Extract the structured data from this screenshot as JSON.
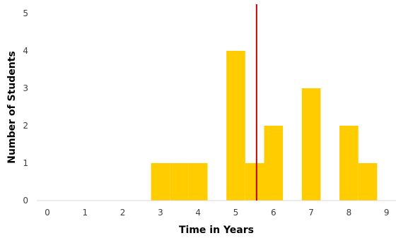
{
  "chart_data": {
    "type": "bar",
    "title": "",
    "xlabel": "Time in Years",
    "ylabel": "Number of Students",
    "xlim": [
      0,
      9
    ],
    "ylim": [
      0,
      5
    ],
    "x_ticks": [
      "0",
      "1",
      "2",
      "3",
      "4",
      "5",
      "6",
      "7",
      "8",
      "9"
    ],
    "y_ticks": [
      "0",
      "1",
      "2",
      "3",
      "4",
      "5"
    ],
    "grid": false,
    "legend": "none",
    "bars": [
      {
        "x_start": 2.75,
        "x_end": 3.25,
        "value": 1
      },
      {
        "x_start": 3.25,
        "x_end": 3.75,
        "value": 1
      },
      {
        "x_start": 3.75,
        "x_end": 4.25,
        "value": 1
      },
      {
        "x_start": 4.75,
        "x_end": 5.25,
        "value": 4
      },
      {
        "x_start": 5.25,
        "x_end": 5.75,
        "value": 1
      },
      {
        "x_start": 5.75,
        "x_end": 6.25,
        "value": 2
      },
      {
        "x_start": 6.75,
        "x_end": 7.25,
        "value": 3
      },
      {
        "x_start": 7.75,
        "x_end": 8.25,
        "value": 2
      },
      {
        "x_start": 8.25,
        "x_end": 8.75,
        "value": 1
      }
    ],
    "reference_line": {
      "x": 5.55,
      "color": "#c00000"
    },
    "colors": {
      "bar": "#ffcc00",
      "axis": "#d9d9d9",
      "tick_text": "#404040"
    }
  }
}
